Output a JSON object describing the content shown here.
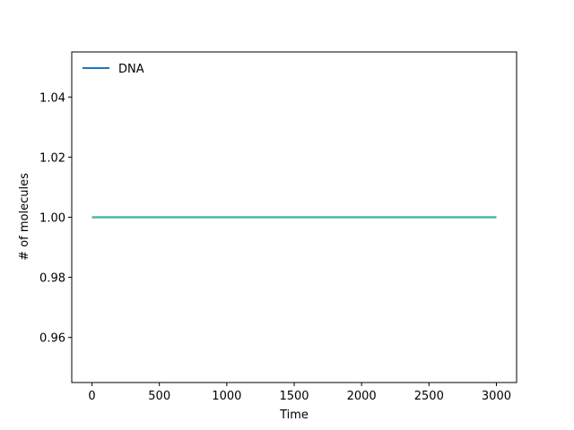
{
  "chart_data": {
    "type": "line",
    "xlabel": "Time",
    "ylabel": "# of molecules",
    "xlim": [
      -150,
      3150
    ],
    "ylim": [
      0.945,
      1.055
    ],
    "xticks": [
      0,
      500,
      1000,
      1500,
      2000,
      2500,
      3000
    ],
    "xtick_labels": [
      "0",
      "500",
      "1000",
      "1500",
      "2000",
      "2500",
      "3000"
    ],
    "yticks": [
      0.96,
      0.98,
      1.0,
      1.02,
      1.04
    ],
    "ytick_labels": [
      "0.96",
      "0.98",
      "1.00",
      "1.02",
      "1.04"
    ],
    "grid": false,
    "legend": {
      "placement": "upper-left",
      "entries": [
        "DNA"
      ]
    },
    "series": [
      {
        "name": "DNA",
        "color": "#1f77b4",
        "x": [
          0,
          3000
        ],
        "values": [
          1.0,
          1.0
        ]
      },
      {
        "color": "#4db6a6",
        "x": [
          0,
          3000
        ],
        "values": [
          1.0,
          1.0
        ]
      }
    ]
  }
}
